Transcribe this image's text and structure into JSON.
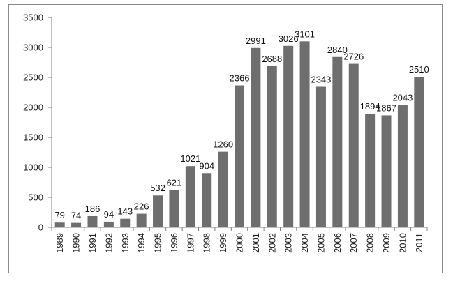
{
  "chart_data": {
    "type": "bar",
    "title": "",
    "xlabel": "",
    "ylabel": "",
    "categories": [
      "1989",
      "1990",
      "1991",
      "1992",
      "1993",
      "1994",
      "1995",
      "1996",
      "1997",
      "1998",
      "1999",
      "2000",
      "2001",
      "2002",
      "2003",
      "2004",
      "2005",
      "2006",
      "2007",
      "2008",
      "2009",
      "2010",
      "2011"
    ],
    "values": [
      79,
      74,
      186,
      94,
      143,
      226,
      532,
      621,
      1021,
      904,
      1260,
      2366,
      2991,
      2688,
      3026,
      3101,
      2343,
      2840,
      2726,
      1894,
      1867,
      2043,
      2510
    ],
    "data_labels": [
      "79",
      "74",
      "186",
      "94",
      "143",
      "226",
      "532",
      "621",
      "1021",
      "904",
      "1260",
      "2366",
      "2991",
      "2688",
      "3026",
      "3101",
      "2343",
      "2840",
      "2726",
      "1894",
      "1867",
      "2043",
      "2510"
    ],
    "ylim": [
      0,
      3500
    ],
    "y_ticks": [
      "0",
      "500",
      "1000",
      "1500",
      "2000",
      "2500",
      "3000",
      "3500"
    ],
    "grid": false,
    "legend": "none",
    "bar_color": "#6e6e6e"
  }
}
